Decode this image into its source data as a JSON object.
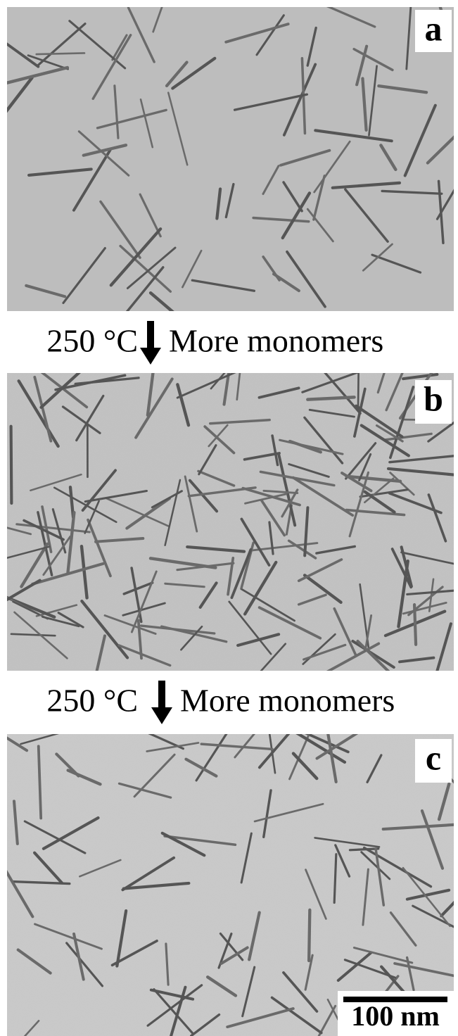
{
  "panels": [
    {
      "label": "a"
    },
    {
      "label": "b"
    },
    {
      "label": "c"
    }
  ],
  "steps": [
    {
      "temperature": "250 °C",
      "condition": "More monomers"
    },
    {
      "temperature": "250 °C",
      "condition": "More monomers"
    }
  ],
  "scale_bar": "100 nm"
}
